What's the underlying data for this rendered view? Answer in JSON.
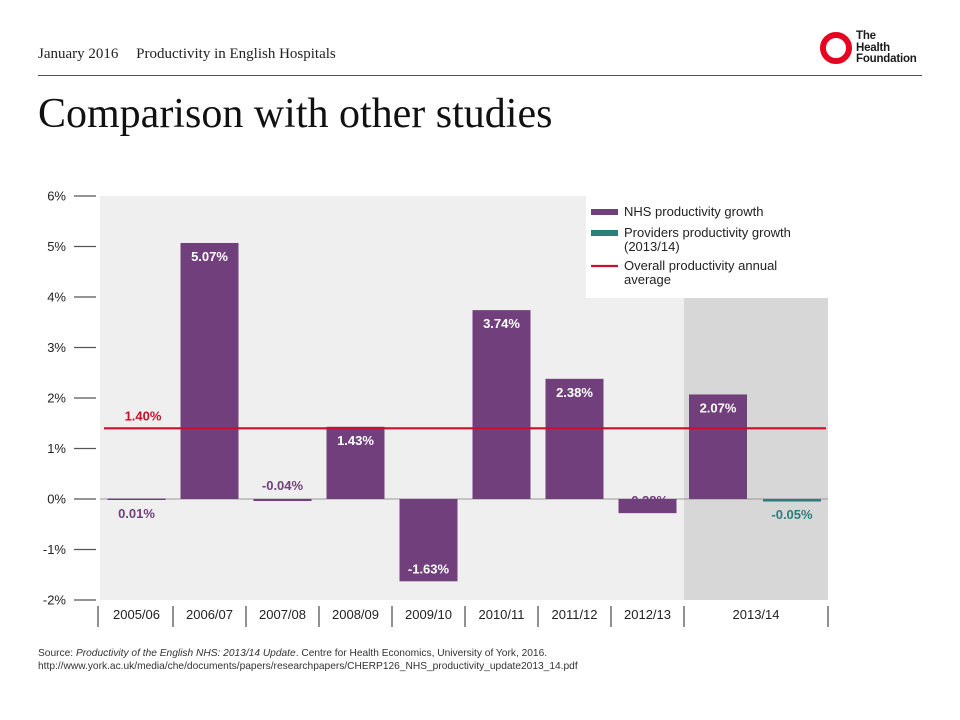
{
  "header": {
    "date": "January 2016",
    "subtitle": "Productivity in English Hospitals",
    "title": "Comparison with other studies"
  },
  "logo": {
    "line1": "The",
    "line2": "Health",
    "line3": "Foundation",
    "color": "#e40520"
  },
  "source": {
    "prefix": "Source: ",
    "title_italic": "Productivity of the English NHS: 2013/14 Update",
    "rest": ". Centre for Health Economics, University of York, 2016.",
    "url": "http://www.york.ac.uk/media/che/documents/papers/researchpapers/CHERP126_NHS_productivity_update2013_14.pdf"
  },
  "chart_data": {
    "type": "bar",
    "categories": [
      "2005/06",
      "2006/07",
      "2007/08",
      "2008/09",
      "2009/10",
      "2010/11",
      "2011/12",
      "2012/13",
      "2013/14"
    ],
    "series": [
      {
        "name": "NHS productivity growth",
        "color": "#71407c",
        "values": [
          0.01,
          5.07,
          -0.04,
          1.43,
          -1.63,
          3.74,
          2.38,
          -0.28,
          2.07
        ],
        "labels": [
          "0.01%",
          "5.07%",
          "-0.04%",
          "1.43%",
          "-1.63%",
          "3.74%",
          "2.38%",
          "-0.28%",
          "2.07%"
        ]
      },
      {
        "name": "Providers productivity growth (2013/14)",
        "color": "#2a7e7c",
        "values": [
          null,
          null,
          null,
          null,
          null,
          null,
          null,
          null,
          -0.05
        ],
        "labels": [
          null,
          null,
          null,
          null,
          null,
          null,
          null,
          null,
          "-0.05%"
        ]
      }
    ],
    "reference_line": {
      "name": "Overall productivity annual average",
      "value": 1.4,
      "label": "1.40%",
      "color": "#c8102e"
    },
    "legend": [
      {
        "lines": [
          "NHS productivity growth"
        ],
        "swatch": "bar",
        "color": "#71407c"
      },
      {
        "lines": [
          "Providers productivity growth",
          "(2013/14)"
        ],
        "swatch": "bar",
        "color": "#2a7e7c"
      },
      {
        "lines": [
          "Overall productivity annual",
          "average"
        ],
        "swatch": "line",
        "color": "#c8102e"
      }
    ],
    "legend_position": "top-right",
    "y_ticks": [
      "6%",
      "5%",
      "4%",
      "3%",
      "2%",
      "1%",
      "0%",
      "-1%",
      "-2%"
    ],
    "ylim": [
      -2,
      6
    ],
    "highlighted_category": "2013/14",
    "grid": false,
    "colors": {
      "plot_bg": "#efefef",
      "highlight_bg": "#d7d7d7",
      "axis": "#555555",
      "bar_label_inside": "#ffffff",
      "bar_label_outside_nhs": "#71407c",
      "bar_label_outside_providers": "#2a7e7c"
    }
  }
}
